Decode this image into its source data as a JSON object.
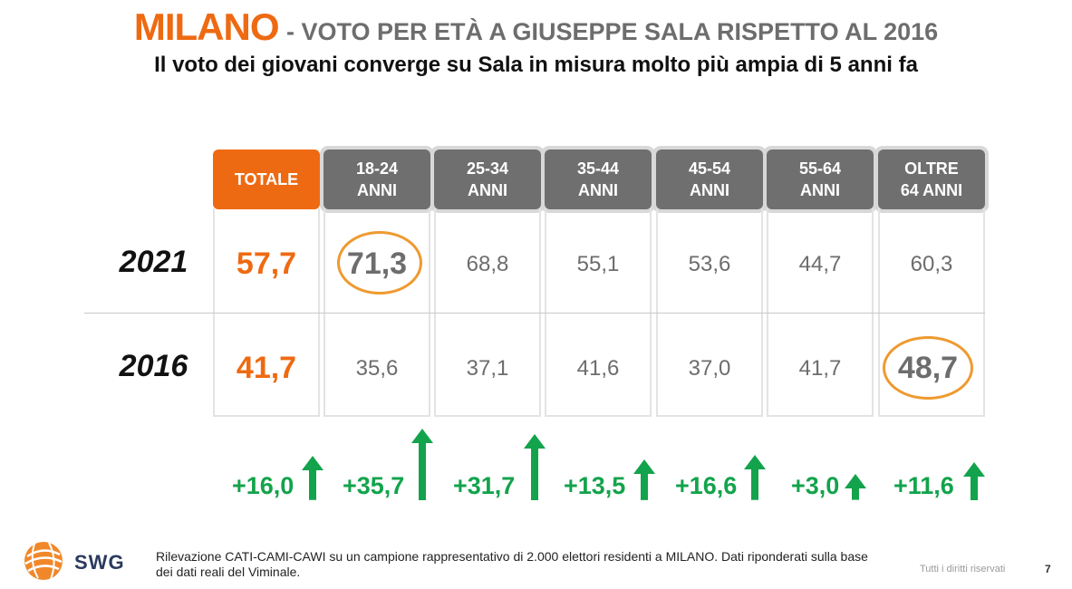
{
  "title": {
    "city": "MILANO",
    "rest": "- VOTO PER ETÀ A GIUSEPPE SALA RISPETTO AL 2016",
    "subtitle": "Il voto dei giovani converge su Sala in misura molto più ampia di 5 anni fa"
  },
  "table": {
    "headers": [
      {
        "line1": "TOTALE",
        "line2": ""
      },
      {
        "line1": "18-24",
        "line2": "ANNI"
      },
      {
        "line1": "25-34",
        "line2": "ANNI"
      },
      {
        "line1": "35-44",
        "line2": "ANNI"
      },
      {
        "line1": "45-54",
        "line2": "ANNI"
      },
      {
        "line1": "55-64",
        "line2": "ANNI"
      },
      {
        "line1": "OLTRE",
        "line2": "64 ANNI"
      }
    ],
    "rows": [
      {
        "year": "2021",
        "values": [
          "57,7",
          "71,3",
          "68,8",
          "55,1",
          "53,6",
          "44,7",
          "60,3"
        ]
      },
      {
        "year": "2016",
        "values": [
          "41,7",
          "35,6",
          "37,1",
          "41,6",
          "37,0",
          "41,7",
          "48,7"
        ]
      }
    ],
    "deltas": [
      "+16,0",
      "+35,7",
      "+31,7",
      "+13,5",
      "+16,6",
      "+3,0",
      "+11,6"
    ]
  },
  "chart_data": {
    "type": "table",
    "title": "MILANO - VOTO PER ETÀ A GIUSEPPE SALA RISPETTO AL 2016",
    "subtitle": "Il voto dei giovani converge su Sala in misura molto più ampia di 5 anni fa",
    "categories": [
      "TOTALE",
      "18-24 ANNI",
      "25-34 ANNI",
      "35-44 ANNI",
      "45-54 ANNI",
      "55-64 ANNI",
      "OLTRE 64 ANNI"
    ],
    "series": [
      {
        "name": "2021",
        "values": [
          57.7,
          71.3,
          68.8,
          55.1,
          53.6,
          44.7,
          60.3
        ]
      },
      {
        "name": "2016",
        "values": [
          41.7,
          35.6,
          37.1,
          41.6,
          37.0,
          41.7,
          48.7
        ]
      }
    ],
    "change": [
      16.0,
      35.7,
      31.7,
      13.5,
      16.6,
      3.0,
      11.6
    ],
    "highlighted": [
      {
        "row": "2021",
        "category": "18-24 ANNI"
      },
      {
        "row": "2016",
        "category": "OLTRE 64 ANNI"
      }
    ]
  },
  "colors": {
    "accent": "#ee6a12",
    "header_gray": "#6f6f6f",
    "positive": "#13a34c",
    "highlight_ring": "#ee9a30"
  },
  "footer": {
    "logo_text": "SWG",
    "note": "Rilevazione CATI-CAMI-CAWI su un campione rappresentativo di 2.000 elettori residenti a MILANO. Dati riponderati sulla base dei dati reali del Viminale.",
    "rights": "Tutti i diritti riservati",
    "page": "7"
  }
}
